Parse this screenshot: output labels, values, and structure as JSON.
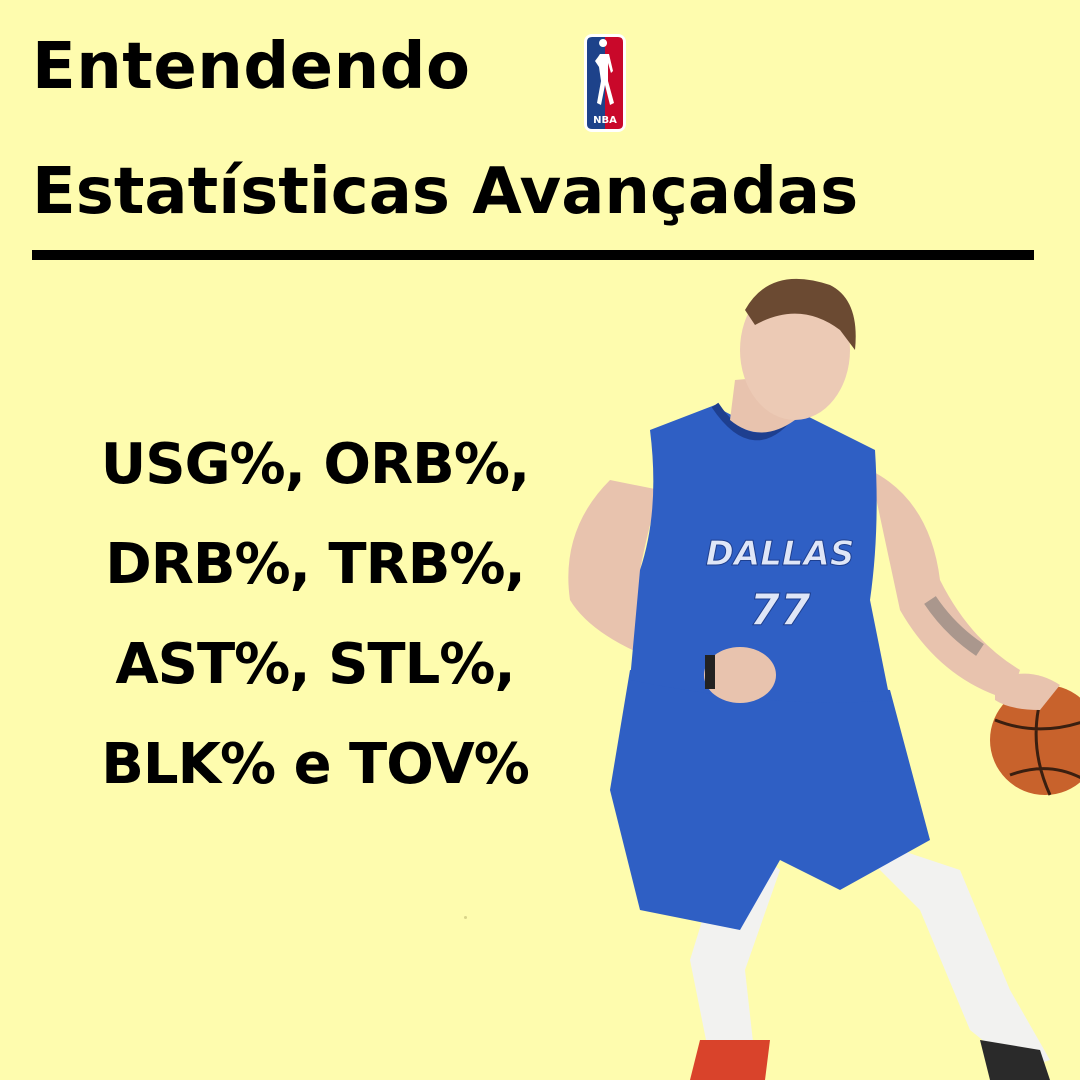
{
  "title": {
    "line1": "Entendendo",
    "line2": "Estatísticas Avançadas"
  },
  "logo": {
    "icon": "nba-logo",
    "text": "NBA"
  },
  "stats": {
    "lines": [
      "USG%, ORB%,",
      "DRB%, TRB%,",
      "AST%, STL%,",
      "BLK% e TOV%"
    ]
  },
  "player": {
    "jersey_text": "DALLAS",
    "jersey_number": "77"
  },
  "colors": {
    "background": "#fefcae",
    "text": "#000000",
    "jersey": "#2f5fc4",
    "ball": "#c8622c"
  }
}
